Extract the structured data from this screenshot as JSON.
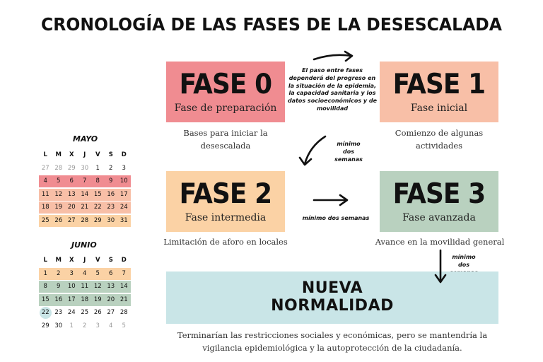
{
  "title": "CRONOLOGÍA DE LAS FASES DE LA DESESCALADA",
  "colors": {
    "fase0": "#f08c91",
    "fase1": "#f8bfa7",
    "fase2": "#fbd2a5",
    "fase3": "#b9d1bf",
    "nueva": "#c9e5e7",
    "may_week1": "#f08c91",
    "may_week2": "#f8bfa7",
    "may_week3": "#f8bfa7",
    "may_week4": "#fbd2a5",
    "jun_week1": "#fbd2a5",
    "jun_week2": "#b9d1bf",
    "jun_week3": "#b9d1bf",
    "jun_day22": "#c9e5e7"
  },
  "phases": [
    {
      "name": "FASE 0",
      "subtitle": "Fase de preparación",
      "description": "Bases para iniciar la desescalada"
    },
    {
      "name": "FASE 1",
      "subtitle": "Fase inicial",
      "description": "Comienzo de algunas actividades"
    },
    {
      "name": "FASE 2",
      "subtitle": "Fase intermedia",
      "description": "Limitación de aforo en locales"
    },
    {
      "name": "FASE 3",
      "subtitle": "Fase avanzada",
      "description": "Avance en la movilidad general"
    }
  ],
  "nueva_normalidad": {
    "line1": "NUEVA",
    "line2": "NORMALIDAD",
    "description": "Terminarían las restricciones sociales y económicas, pero se mantendría la vigilancia epidemiológica y la autoprotección de la ciudadanía."
  },
  "notes": {
    "transition_note": "El paso entre fases dependerá del progreso en la situación de la epidemia, la capacidad sanitaria y los datos socioeconómicos y de movilidad",
    "min_two_weeks": "mínimo dos semanas"
  },
  "calendar": {
    "weekdays": [
      "L",
      "M",
      "X",
      "J",
      "V",
      "S",
      "D"
    ],
    "may": {
      "label": "MAYO",
      "weeks": [
        [
          "27",
          "28",
          "29",
          "30",
          "1",
          "2",
          "3"
        ],
        [
          "4",
          "5",
          "6",
          "7",
          "8",
          "9",
          "10"
        ],
        [
          "11",
          "12",
          "13",
          "14",
          "15",
          "16",
          "17"
        ],
        [
          "18",
          "19",
          "20",
          "21",
          "22",
          "23",
          "24"
        ],
        [
          "25",
          "26",
          "27",
          "28",
          "29",
          "30",
          "31"
        ]
      ]
    },
    "june": {
      "label": "JUNIO",
      "weeks": [
        [
          "1",
          "2",
          "3",
          "4",
          "5",
          "6",
          "7"
        ],
        [
          "8",
          "9",
          "10",
          "11",
          "12",
          "13",
          "14"
        ],
        [
          "15",
          "16",
          "17",
          "18",
          "19",
          "20",
          "21"
        ],
        [
          "22",
          "23",
          "24",
          "25",
          "26",
          "27",
          "28"
        ],
        [
          "29",
          "30",
          "1",
          "2",
          "3",
          "4",
          "5"
        ]
      ]
    }
  }
}
